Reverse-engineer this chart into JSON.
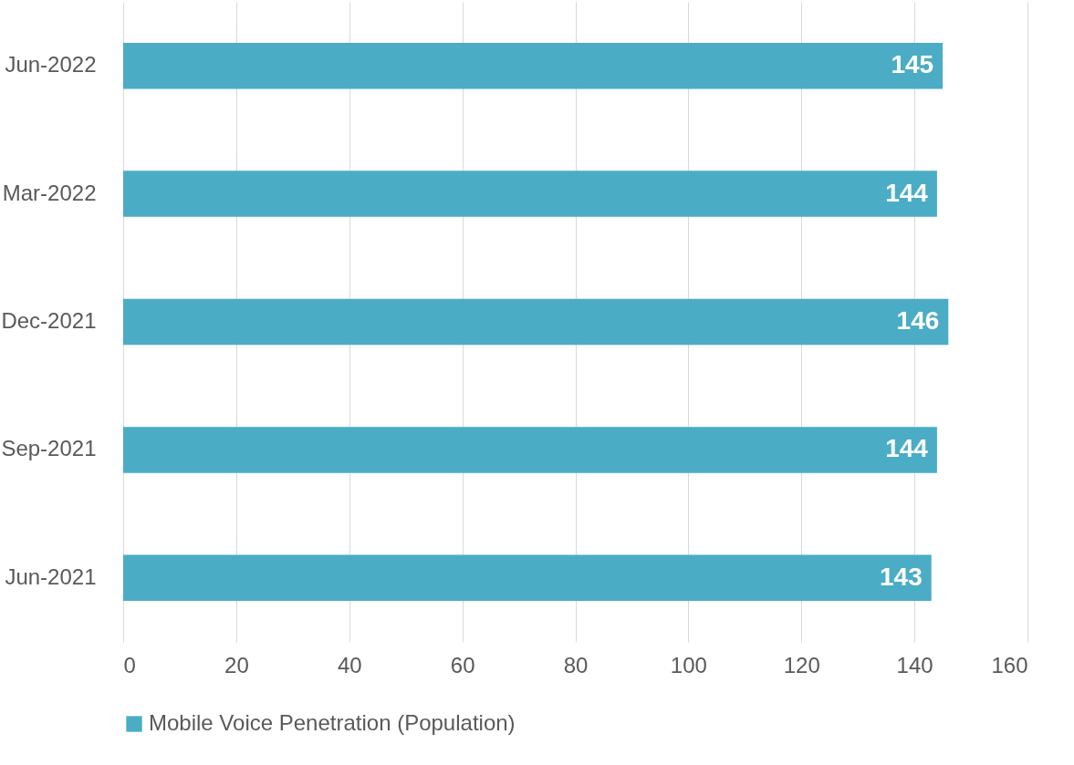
{
  "chart_data": {
    "type": "bar",
    "orientation": "horizontal",
    "categories": [
      "Jun-2022",
      "Mar-2022",
      "Dec-2021",
      "Sep-2021",
      "Jun-2021"
    ],
    "series": [
      {
        "name": "Mobile Voice Penetration (Population)",
        "color": "#4bacc6",
        "values": [
          145,
          144,
          146,
          144,
          143
        ]
      }
    ],
    "xlim": [
      0,
      160
    ],
    "xticks": [
      0,
      20,
      40,
      60,
      80,
      100,
      120,
      140,
      160
    ],
    "grid": "x",
    "legend": "bottom",
    "data_labels": true
  }
}
